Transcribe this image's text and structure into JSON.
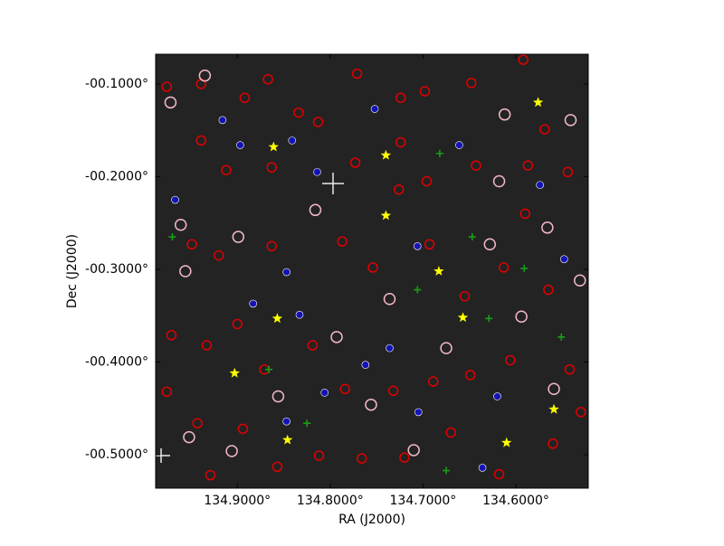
{
  "chart_data": {
    "type": "scatter",
    "xlabel": "RA (J2000)",
    "ylabel": "Dec (J2000)",
    "xlim": [
      134.988,
      134.522
    ],
    "ylim": [
      -0.536,
      -0.068
    ],
    "xticks": [
      {
        "value": 134.9,
        "label": "134.9000°"
      },
      {
        "value": 134.8,
        "label": "134.8000°"
      },
      {
        "value": 134.7,
        "label": "134.7000°"
      },
      {
        "value": 134.6,
        "label": "134.6000°"
      }
    ],
    "yticks": [
      {
        "value": -0.1,
        "label": "-00.1000°"
      },
      {
        "value": -0.2,
        "label": "-00.2000°"
      },
      {
        "value": -0.3,
        "label": "-00.3000°"
      },
      {
        "value": -0.4,
        "label": "-00.4000°"
      },
      {
        "value": -0.5,
        "label": "-00.5000°"
      }
    ],
    "background": "#232323",
    "series": [
      {
        "marker": "circle",
        "color": "#e00000",
        "x": [
          134.976,
          134.939,
          134.892,
          134.867,
          134.834,
          134.813,
          134.771,
          134.724,
          134.698,
          134.648,
          134.592,
          134.569,
          134.939,
          134.912,
          134.863,
          134.773,
          134.726,
          134.696,
          134.643,
          134.587,
          134.544,
          134.949,
          134.92,
          134.863,
          134.787,
          134.754,
          134.693,
          134.655,
          134.613,
          134.565,
          134.971,
          134.933,
          134.9,
          134.871,
          134.819,
          134.784,
          134.732,
          134.689,
          134.649,
          134.606,
          134.542,
          134.976,
          134.943,
          134.894,
          134.857,
          134.812,
          134.766,
          134.72,
          134.67,
          134.618,
          134.56,
          134.53,
          134.929,
          134.724,
          134.59
        ],
        "y": [
          -0.103,
          -0.1,
          -0.115,
          -0.095,
          -0.131,
          -0.141,
          -0.089,
          -0.115,
          -0.108,
          -0.099,
          -0.074,
          -0.149,
          -0.161,
          -0.193,
          -0.19,
          -0.185,
          -0.214,
          -0.205,
          -0.188,
          -0.188,
          -0.195,
          -0.273,
          -0.285,
          -0.275,
          -0.27,
          -0.298,
          -0.273,
          -0.329,
          -0.298,
          -0.322,
          -0.371,
          -0.382,
          -0.359,
          -0.408,
          -0.382,
          -0.429,
          -0.431,
          -0.421,
          -0.414,
          -0.398,
          -0.408,
          -0.432,
          -0.466,
          -0.472,
          -0.513,
          -0.501,
          -0.504,
          -0.503,
          -0.476,
          -0.521,
          -0.488,
          -0.454,
          -0.522,
          -0.163,
          -0.24
        ]
      },
      {
        "marker": "circle",
        "color": "#f2b8c6",
        "x": [
          134.972,
          134.935,
          134.961,
          134.956,
          134.899,
          134.816,
          134.793,
          134.736,
          134.675,
          134.618,
          134.612,
          134.541,
          134.566,
          134.531,
          134.594,
          134.559,
          134.856,
          134.952,
          134.906,
          134.71,
          134.756,
          134.628
        ],
        "y": [
          -0.12,
          -0.091,
          -0.252,
          -0.302,
          -0.265,
          -0.236,
          -0.373,
          -0.332,
          -0.385,
          -0.205,
          -0.133,
          -0.139,
          -0.255,
          -0.312,
          -0.351,
          -0.429,
          -0.437,
          -0.481,
          -0.496,
          -0.495,
          -0.446,
          -0.273
        ]
      },
      {
        "marker": "dot",
        "color": "#1414b4",
        "x": [
          134.916,
          134.897,
          134.967,
          134.841,
          134.814,
          134.847,
          134.883,
          134.833,
          134.736,
          134.806,
          134.847,
          134.705,
          134.762,
          134.752,
          134.661,
          134.574,
          134.706,
          134.548,
          134.636,
          134.62
        ],
        "y": [
          -0.139,
          -0.166,
          -0.225,
          -0.161,
          -0.195,
          -0.303,
          -0.337,
          -0.349,
          -0.385,
          -0.433,
          -0.464,
          -0.454,
          -0.403,
          -0.127,
          -0.166,
          -0.209,
          -0.275,
          -0.289,
          -0.514,
          -0.437
        ]
      },
      {
        "marker": "plus",
        "color": "#16a016",
        "x": [
          134.97,
          134.682,
          134.647,
          134.706,
          134.591,
          134.629,
          134.551,
          134.866,
          134.825,
          134.675
        ],
        "y": [
          -0.265,
          -0.175,
          -0.265,
          -0.322,
          -0.299,
          -0.353,
          -0.373,
          -0.408,
          -0.466,
          -0.517
        ]
      },
      {
        "marker": "star",
        "color": "#ffff00",
        "x": [
          134.861,
          134.74,
          134.576,
          134.74,
          134.683,
          134.857,
          134.657,
          134.903,
          134.559,
          134.846,
          134.61
        ],
        "y": [
          -0.168,
          -0.177,
          -0.12,
          -0.242,
          -0.302,
          -0.353,
          -0.352,
          -0.412,
          -0.451,
          -0.484,
          -0.487
        ]
      }
    ]
  }
}
